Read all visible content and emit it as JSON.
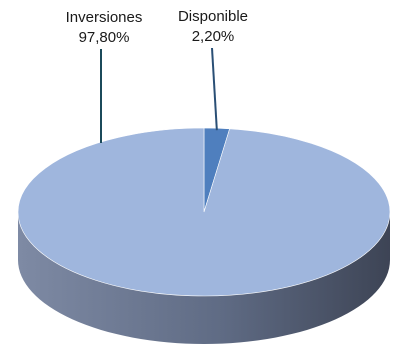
{
  "chart_data": {
    "type": "pie",
    "style": "3d",
    "title": "",
    "slices": [
      {
        "name": "Inversiones",
        "value": 97.8,
        "label": "97,80%",
        "color": "#9fb6dd",
        "leader_color": "#1b4a5a"
      },
      {
        "name": "Disponible",
        "value": 2.2,
        "label": "2,20%",
        "color": "#4f7fbe",
        "leader_color": "#2a4f75"
      }
    ],
    "legend": "none"
  }
}
